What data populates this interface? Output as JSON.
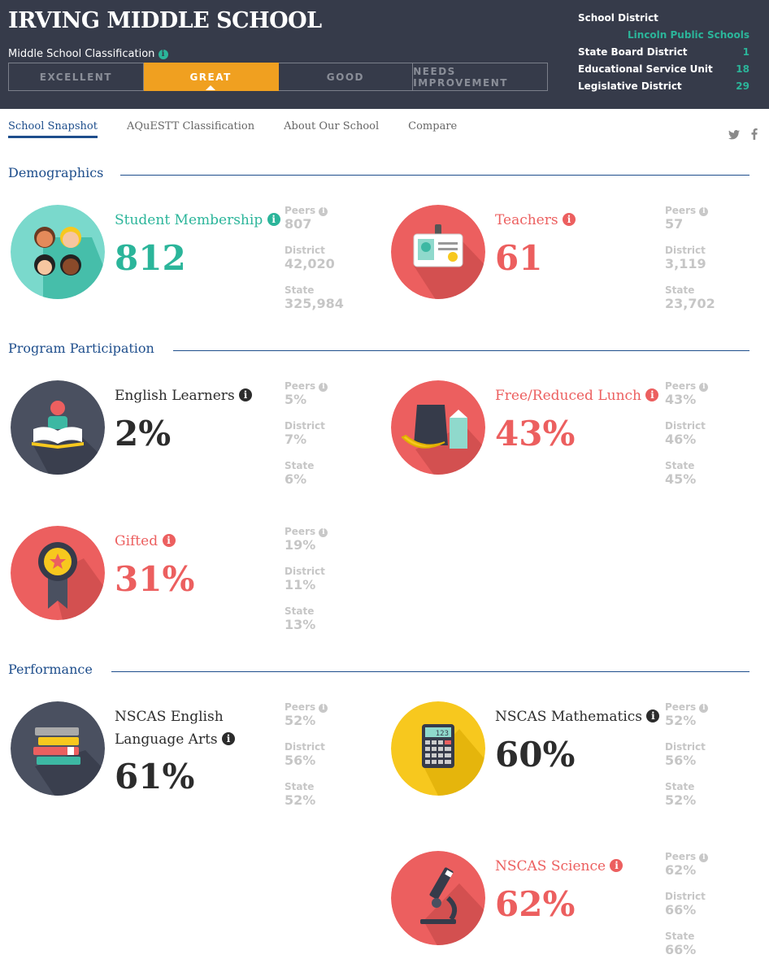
{
  "header": {
    "school_name": "IRVING MIDDLE SCHOOL",
    "classification_label": "Middle School Classification",
    "ratings": [
      "EXCELLENT",
      "GREAT",
      "GOOD",
      "NEEDS IMPROVEMENT"
    ],
    "active_rating": "GREAT",
    "district": {
      "school_district_label": "School District",
      "school_district_value": "Lincoln Public Schools",
      "state_board_label": "State Board District",
      "state_board_value": "1",
      "esu_label": "Educational Service Unit",
      "esu_value": "18",
      "legislative_label": "Legislative District",
      "legislative_value": "29"
    }
  },
  "nav": {
    "tabs": [
      "School Snapshot",
      "AQuESTT Classification",
      "About Our School",
      "Compare"
    ],
    "active_tab": "School Snapshot"
  },
  "social": {
    "twitter": "twitter-icon",
    "facebook": "facebook-icon"
  },
  "comparison_labels": {
    "peers": "Peers",
    "district": "District",
    "state": "State"
  },
  "info_glyph": "i",
  "sections": {
    "demographics": "Demographics",
    "program": "Program Participation",
    "performance": "Performance"
  },
  "stats": {
    "membership": {
      "label": "Student Membership",
      "value": "812",
      "peers": "807",
      "district": "42,020",
      "state": "325,984",
      "icon": "students-icon"
    },
    "teachers": {
      "label": "Teachers",
      "value": "61",
      "peers": "57",
      "district": "3,119",
      "state": "23,702",
      "icon": "id-badge-icon"
    },
    "ell": {
      "label": "English Learners",
      "value": "2%",
      "peers": "5%",
      "district": "7%",
      "state": "6%",
      "icon": "reader-book-icon"
    },
    "frl": {
      "label": "Free/Reduced Lunch",
      "value": "43%",
      "peers": "43%",
      "district": "46%",
      "state": "45%",
      "icon": "lunch-icon"
    },
    "gifted": {
      "label": "Gifted",
      "value": "31%",
      "peers": "19%",
      "district": "11%",
      "state": "13%",
      "icon": "award-ribbon-icon"
    },
    "ela": {
      "label_line1": "NSCAS English",
      "label_line2": "Language Arts",
      "value": "61%",
      "peers": "52%",
      "district": "56%",
      "state": "52%",
      "icon": "books-icon"
    },
    "math": {
      "label": "NSCAS Mathematics",
      "value": "60%",
      "peers": "52%",
      "district": "56%",
      "state": "52%",
      "icon": "calculator-icon",
      "calc_display": "123"
    },
    "science": {
      "label": "NSCAS Science",
      "value": "62%",
      "peers": "62%",
      "district": "66%",
      "state": "66%",
      "icon": "microscope-icon"
    }
  },
  "colors": {
    "header_bg": "#363b4a",
    "accent_green": "#2bb59a",
    "accent_red": "#ec5f5f",
    "accent_orange": "#f0a020",
    "accent_yellow": "#f7c81e",
    "nav_blue": "#1e4e8c",
    "muted": "#c6c6c6"
  }
}
